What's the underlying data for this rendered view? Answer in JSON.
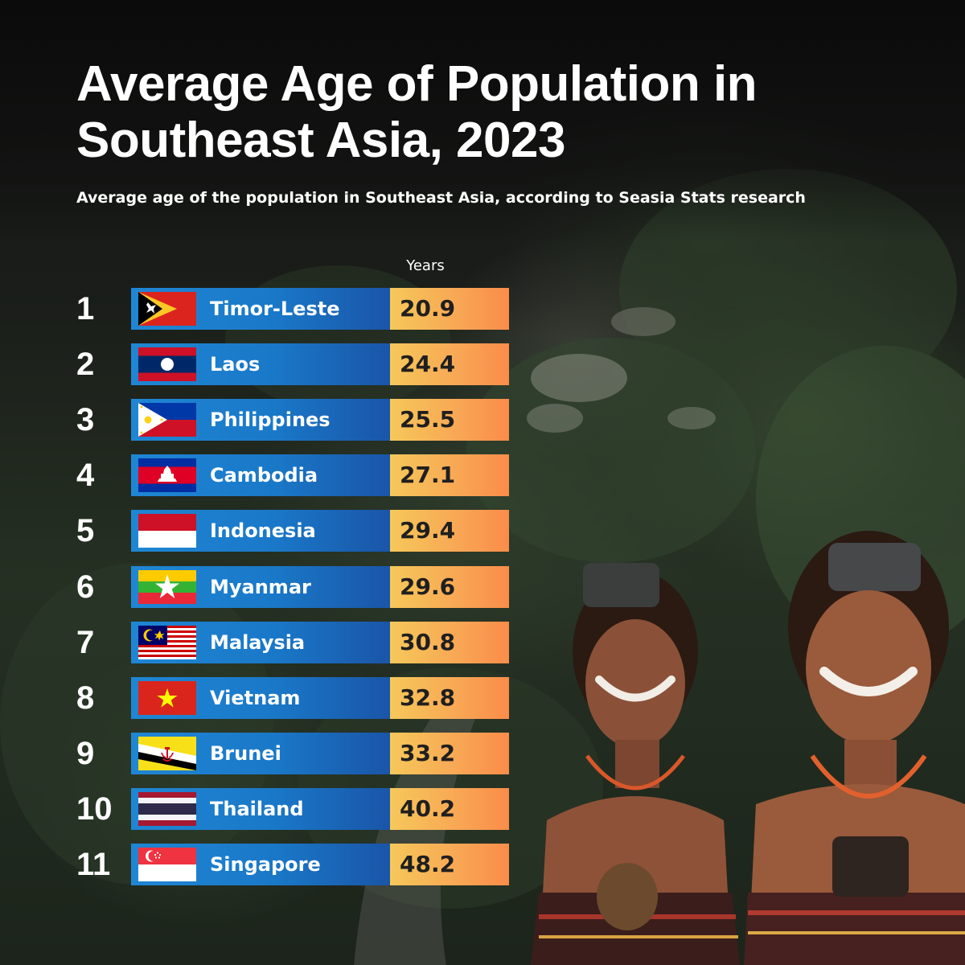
{
  "chart_data": {
    "type": "table",
    "title": "Average Age of Population in Southeast Asia, 2023",
    "subtitle": "Average age of the population in Southeast Asia, according to Seasia Stats research",
    "value_header": "Years",
    "rows": [
      {
        "rank": "1",
        "country": "Timor-Leste",
        "value": "20.9",
        "flag": "timor-leste-flag"
      },
      {
        "rank": "2",
        "country": "Laos",
        "value": "24.4",
        "flag": "laos-flag"
      },
      {
        "rank": "3",
        "country": "Philippines",
        "value": "25.5",
        "flag": "philippines-flag"
      },
      {
        "rank": "4",
        "country": "Cambodia",
        "value": "27.1",
        "flag": "cambodia-flag"
      },
      {
        "rank": "5",
        "country": "Indonesia",
        "value": "29.4",
        "flag": "indonesia-flag"
      },
      {
        "rank": "6",
        "country": "Myanmar",
        "value": "29.6",
        "flag": "myanmar-flag"
      },
      {
        "rank": "7",
        "country": "Malaysia",
        "value": "30.8",
        "flag": "malaysia-flag"
      },
      {
        "rank": "8",
        "country": "Vietnam",
        "value": "32.8",
        "flag": "vietnam-flag"
      },
      {
        "rank": "9",
        "country": "Brunei",
        "value": "33.2",
        "flag": "brunei-flag"
      },
      {
        "rank": "10",
        "country": "Thailand",
        "value": "40.2",
        "flag": "thailand-flag"
      },
      {
        "rank": "11",
        "country": "Singapore",
        "value": "48.2",
        "flag": "singapore-flag"
      }
    ]
  },
  "colors": {
    "bar_blue": "#1a78c8",
    "value_orange": "#f8a855",
    "title_text": "#ffffff"
  }
}
